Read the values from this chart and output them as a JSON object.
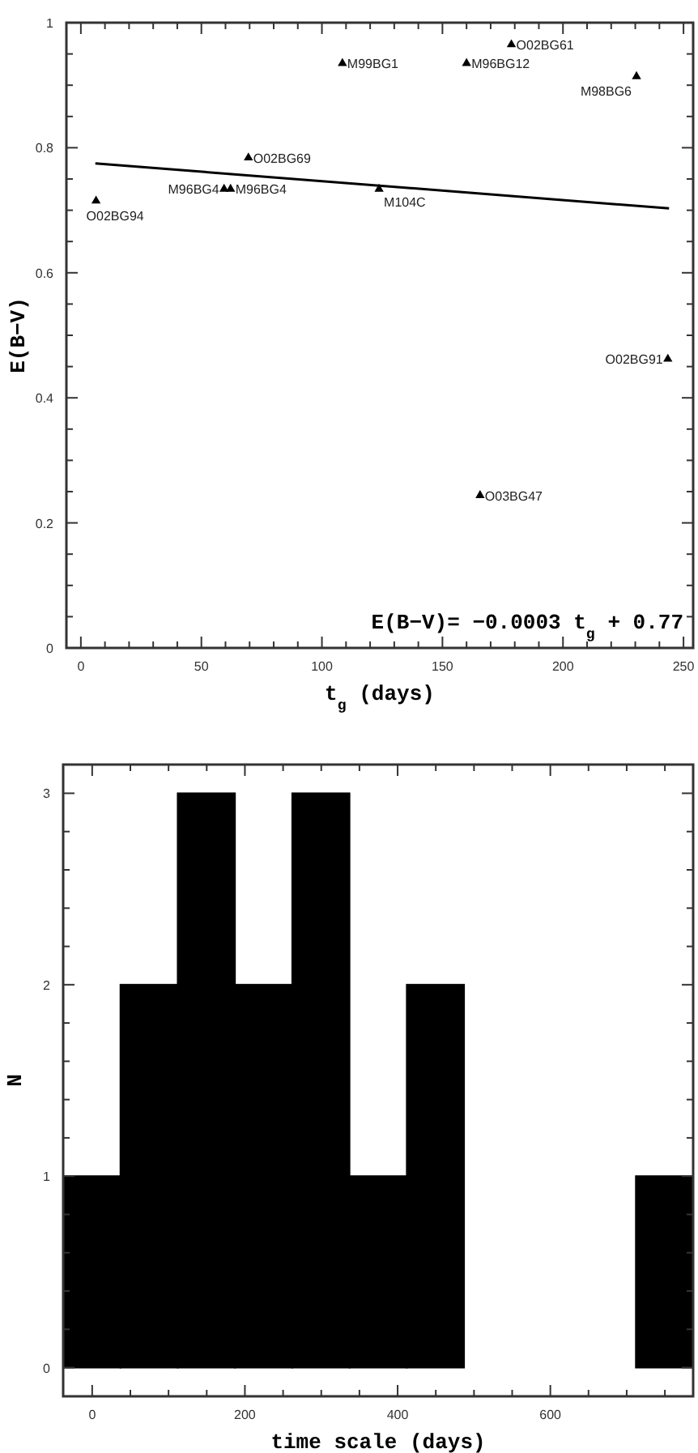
{
  "chart_data": [
    {
      "type": "scatter",
      "xlabel": "t$_{g}$ (days)",
      "ylabel": "E(B−V)",
      "xlim": [
        -6,
        254
      ],
      "ylim": [
        0,
        1
      ],
      "xticks": [
        0,
        {
          "value": 10,
          "label": null
        },
        {
          "value": 20,
          "label": null
        },
        {
          "value": 30,
          "label": null
        },
        {
          "value": 40,
          "label": null
        },
        50,
        {
          "value": 60,
          "label": null
        },
        {
          "value": 70,
          "label": null
        },
        {
          "value": 80,
          "label": null
        },
        {
          "value": 90,
          "label": null
        },
        100,
        {
          "value": 110,
          "label": null
        },
        {
          "value": 120,
          "label": null
        },
        {
          "value": 130,
          "label": null
        },
        {
          "value": 140,
          "label": null
        },
        150,
        {
          "value": 160,
          "label": null
        },
        {
          "value": 170,
          "label": null
        },
        {
          "value": 180,
          "label": null
        },
        {
          "value": 190,
          "label": null
        },
        200,
        {
          "value": 210,
          "label": null
        },
        {
          "value": 220,
          "label": null
        },
        {
          "value": 230,
          "label": null
        },
        {
          "value": 240,
          "label": null
        },
        250
      ],
      "yticks": [
        0,
        {
          "value": 0.05,
          "label": null
        },
        {
          "value": 0.1,
          "label": null
        },
        {
          "value": 0.15,
          "label": null
        },
        0.2,
        {
          "value": 0.25,
          "label": null
        },
        {
          "value": 0.3,
          "label": null
        },
        {
          "value": 0.35,
          "label": null
        },
        0.4,
        {
          "value": 0.45,
          "label": null
        },
        {
          "value": 0.5,
          "label": null
        },
        {
          "value": 0.55,
          "label": null
        },
        0.6,
        {
          "value": 0.65,
          "label": null
        },
        {
          "value": 0.7,
          "label": null
        },
        {
          "value": 0.75,
          "label": null
        },
        0.8,
        {
          "value": 0.85,
          "label": null
        },
        {
          "value": 0.9,
          "label": null
        },
        {
          "value": 0.95,
          "label": null
        },
        1
      ],
      "grid": false,
      "series": [
        {
          "type": "scatter",
          "marker": "triangle",
          "color": "#000000",
          "x": [
            6.3,
            59.4,
            62.1,
            69.5,
            108.5,
            123.7,
            160,
            178.6,
            230.5,
            243.5,
            165.6
          ],
          "values": [
            0.715,
            0.734,
            0.734,
            0.784,
            0.935,
            0.734,
            0.935,
            0.965,
            0.914,
            0.462,
            0.244
          ]
        },
        {
          "type": "line",
          "color": "#000000",
          "x": [
            6,
            244
          ],
          "values": [
            0.775,
            0.703
          ]
        }
      ],
      "annotations": [
        {
          "text": "O02BG94",
          "x": 6.3,
          "y": 0.715
        },
        {
          "text": "M96BG4",
          "x": 59.4,
          "y": 0.734
        },
        {
          "text": "M96BG4",
          "x": 62.1,
          "y": 0.734
        },
        {
          "text": "O02BG69",
          "x": 69.5,
          "y": 0.784
        },
        {
          "text": "M99BG1",
          "x": 108.5,
          "y": 0.935
        },
        {
          "text": "M104C",
          "x": 123.7,
          "y": 0.734
        },
        {
          "text": "M96BG12",
          "x": 160,
          "y": 0.935
        },
        {
          "text": "O02BG61",
          "x": 178.6,
          "y": 0.965
        },
        {
          "text": "M98BG6",
          "x": 230.5,
          "y": 0.914
        },
        {
          "text": "O02BG91",
          "x": 243.5,
          "y": 0.462
        },
        {
          "text": "O03BG47",
          "x": 165.6,
          "y": 0.244
        },
        "E(B−V)= −0.0003 t$_{g}$ + 0.77"
      ]
    },
    {
      "type": "histogram",
      "xlabel": "time scale (days)",
      "ylabel": "N",
      "xlim": [
        -38,
        787
      ],
      "ylim": [
        -0.15,
        3.15
      ],
      "color": "#000000",
      "bins": [
        -38,
        37,
        112,
        187,
        262,
        337,
        412,
        487,
        562,
        637,
        712,
        787
      ],
      "values": [
        1,
        2,
        3,
        2,
        3,
        1,
        2,
        0,
        0,
        0,
        1
      ],
      "xticks": [
        0,
        {
          "value": 50,
          "label": null
        },
        {
          "value": 100,
          "label": null
        },
        {
          "value": 150,
          "label": null
        },
        200,
        {
          "value": 250,
          "label": null
        },
        {
          "value": 300,
          "label": null
        },
        {
          "value": 350,
          "label": null
        },
        400,
        {
          "value": 450,
          "label": null
        },
        {
          "value": 500,
          "label": null
        },
        {
          "value": 550,
          "label": null
        },
        600,
        {
          "value": 650,
          "label": null
        },
        {
          "value": 700,
          "label": null
        },
        {
          "value": 750,
          "label": null
        }
      ],
      "yticks": [
        0,
        {
          "value": 0.2,
          "label": null
        },
        {
          "value": 0.4,
          "label": null
        },
        {
          "value": 0.6,
          "label": null
        },
        {
          "value": 0.8,
          "label": null
        },
        1,
        {
          "value": 1.2,
          "label": null
        },
        {
          "value": 1.4,
          "label": null
        },
        {
          "value": 1.6,
          "label": null
        },
        {
          "value": 1.8,
          "label": null
        },
        2,
        {
          "value": 2.2,
          "label": null
        },
        {
          "value": 2.4,
          "label": null
        },
        {
          "value": 2.6,
          "label": null
        },
        {
          "value": 2.8,
          "label": null
        },
        3
      ],
      "grid": false
    }
  ]
}
